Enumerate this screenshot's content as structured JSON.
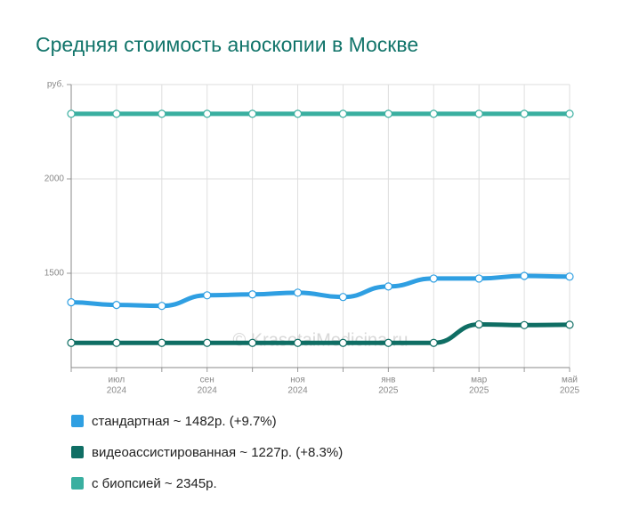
{
  "chart_data": {
    "type": "line",
    "title": "Средняя стоимость аноскопии в Москве",
    "watermark": "© KrasotaiMedicina.ru",
    "categories": [
      null,
      "июл",
      null,
      "сен",
      null,
      "ноя",
      null,
      "янв",
      null,
      "мар",
      null,
      "май"
    ],
    "category_years": [
      null,
      "2024",
      null,
      "2024",
      null,
      "2024",
      null,
      "2025",
      null,
      "2025",
      null,
      "2025"
    ],
    "ylim": [
      1000,
      2500
    ],
    "yticks": [
      1500,
      2000,
      {
        "value": 2500,
        "label": "руб."
      }
    ],
    "grid": true,
    "series": [
      {
        "name": "стандартная ~ 1482р. (+9.7%)",
        "color": "#2f9fe2",
        "values": [
          1346,
          1332,
          1327,
          1383,
          1388,
          1397,
          1374,
          1430,
          1472,
          1472,
          1486,
          1482
        ]
      },
      {
        "name": "видеоассистированная ~ 1227р. (+8.3%)",
        "color": "#0f6e64",
        "values": [
          1131,
          1131,
          1131,
          1131,
          1131,
          1131,
          1131,
          1131,
          1131,
          1229,
          1225,
          1227
        ]
      },
      {
        "name": "с биопсией ~ 2345р.",
        "color": "#3aafa0",
        "values": [
          2345,
          2345,
          2345,
          2345,
          2345,
          2345,
          2345,
          2345,
          2345,
          2345,
          2345,
          2345
        ]
      }
    ]
  }
}
